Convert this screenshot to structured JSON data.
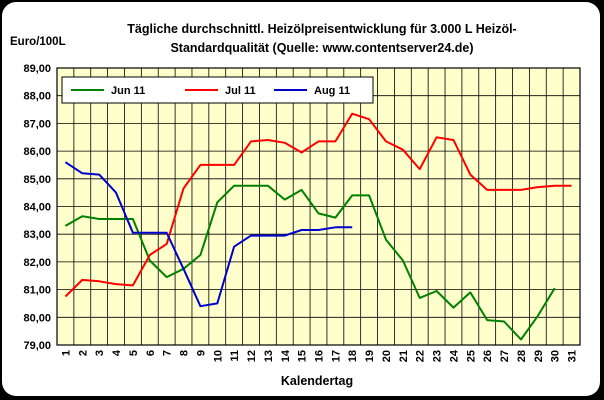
{
  "chart_data": {
    "type": "line",
    "title": "Tägliche durchschnittl. Heizölpreisentwicklung für 3.000 L Heizöl-",
    "subtitle": "Standardqualität (Quelle: www.contentserver24.de)",
    "ylabel": "Euro/100L",
    "xlabel": "Kalendertag",
    "ylim": [
      79,
      89
    ],
    "yticks": [
      "79,00",
      "80,00",
      "81,00",
      "82,00",
      "83,00",
      "84,00",
      "85,00",
      "86,00",
      "87,00",
      "88,00",
      "89,00"
    ],
    "x": [
      1,
      2,
      3,
      4,
      5,
      6,
      7,
      8,
      9,
      10,
      11,
      12,
      13,
      14,
      15,
      16,
      17,
      18,
      19,
      20,
      21,
      22,
      23,
      24,
      25,
      26,
      27,
      28,
      29,
      30,
      31
    ],
    "grid": true,
    "legend_position": "top",
    "plot_background": "#ffffcc",
    "series": [
      {
        "name": "Jun 11",
        "color": "#008000",
        "values": [
          83.3,
          83.65,
          83.55,
          83.55,
          83.55,
          82.05,
          81.45,
          81.75,
          82.25,
          84.15,
          84.75,
          84.75,
          84.75,
          84.25,
          84.6,
          83.75,
          83.6,
          84.4,
          84.4,
          82.8,
          82.05,
          80.7,
          80.95,
          80.35,
          80.9,
          79.9,
          79.85,
          79.2,
          80.05,
          81.05,
          null
        ]
      },
      {
        "name": "Jul 11",
        "color": "#ff0000",
        "values": [
          80.75,
          81.35,
          81.3,
          81.2,
          81.15,
          82.25,
          82.65,
          84.65,
          85.5,
          85.5,
          85.5,
          86.35,
          86.4,
          86.3,
          85.95,
          86.35,
          86.35,
          87.35,
          87.15,
          86.35,
          86.05,
          85.35,
          86.5,
          86.4,
          85.15,
          84.6,
          84.6,
          84.6,
          84.7,
          84.75,
          84.75
        ]
      },
      {
        "name": "Aug 11",
        "color": "#0000cc",
        "values": [
          85.6,
          85.2,
          85.15,
          84.5,
          83.05,
          83.05,
          83.05,
          81.75,
          80.4,
          80.5,
          82.55,
          82.95,
          82.95,
          82.95,
          83.15,
          83.15,
          83.25,
          83.25,
          null,
          null,
          null,
          null,
          null,
          null,
          null,
          null,
          null,
          null,
          null,
          null,
          null
        ]
      }
    ]
  }
}
